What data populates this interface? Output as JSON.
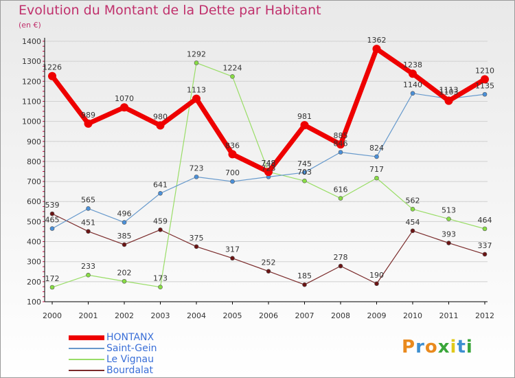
{
  "title": "Evolution du Montant de la Dette par Habitant",
  "subtitle": "(en €)",
  "logo": {
    "text": "Proxiti",
    "colors": [
      "#e98a1e",
      "#3d8fd1",
      "#e98a1e",
      "#3aa63a",
      "#e0c91a",
      "#3d8fd1",
      "#3aa63a"
    ]
  },
  "colors": {
    "grid": "#d0d0d0",
    "axis": "#000000",
    "title": "#c0306c",
    "minor_tick": "#d0104a"
  },
  "chart_data": {
    "type": "line",
    "x": [
      "2000",
      "2001",
      "2002",
      "2003",
      "2004",
      "2005",
      "2006",
      "2007",
      "2008",
      "2009",
      "2010",
      "2011",
      "2012"
    ],
    "ylim": [
      100,
      1400
    ],
    "yticks": [
      100,
      200,
      300,
      400,
      500,
      600,
      700,
      800,
      900,
      1000,
      1100,
      1200,
      1300,
      1400
    ],
    "grid": true,
    "legend": "bottom-left",
    "series": [
      {
        "name": "HONTANX",
        "color": "#ee0000",
        "line_width": 7,
        "marker": 6,
        "marker_fill": "#ee0000",
        "values": [
          1226,
          989,
          1070,
          980,
          1113,
          836,
          748,
          981,
          885,
          1362,
          1238,
          1103,
          1210
        ],
        "labels": [
          "1226",
          "989",
          "1070",
          "980",
          "1113",
          "836",
          "748",
          "981",
          "885",
          "1362",
          "1238",
          "1103",
          "1210"
        ]
      },
      {
        "name": "Saint-Gein",
        "color": "#6699cc",
        "line_width": 1.2,
        "marker": 3,
        "marker_fill": "#4a90d9",
        "values": [
          465,
          565,
          496,
          641,
          723,
          700,
          723,
          745,
          846,
          824,
          1140,
          1113,
          1135
        ],
        "labels": [
          "465",
          "565",
          "496",
          "641",
          "723",
          "700",
          "723",
          "745",
          "846",
          "824",
          "1140",
          "1113",
          "1135"
        ]
      },
      {
        "name": "Le Vignau",
        "color": "#99dd66",
        "line_width": 1.2,
        "marker": 3,
        "marker_fill": "#88dd44",
        "values": [
          172,
          233,
          202,
          173,
          1292,
          1224,
          748,
          703,
          616,
          717,
          562,
          513,
          464
        ],
        "labels": [
          "172",
          "233",
          "202",
          "173",
          "1292",
          "1224",
          "748",
          "703",
          "616",
          "717",
          "562",
          "513",
          "464"
        ]
      },
      {
        "name": "Bourdalat",
        "color": "#7a2a2a",
        "line_width": 1.2,
        "marker": 3,
        "marker_fill": "#6b1414",
        "values": [
          539,
          451,
          385,
          459,
          375,
          317,
          252,
          185,
          278,
          190,
          454,
          393,
          337
        ],
        "labels": [
          "539",
          "451",
          "385",
          "459",
          "375",
          "317",
          "252",
          "185",
          "278",
          "190",
          "454",
          "393",
          "337"
        ]
      }
    ]
  }
}
